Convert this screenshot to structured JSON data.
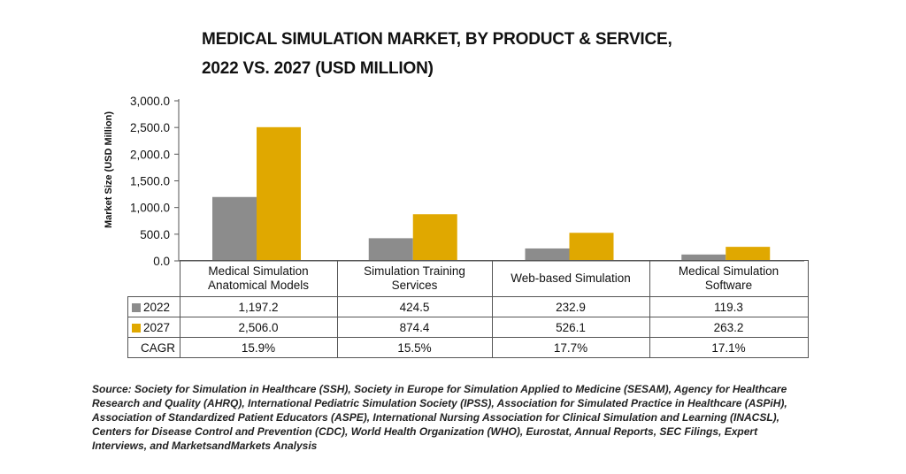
{
  "chart_data": {
    "type": "bar",
    "title": [
      "MEDICAL SIMULATION MARKET, BY PRODUCT & SERVICE,",
      "2022 VS. 2027 (USD MILLION)"
    ],
    "ylabel": "Market Size (USD Million)",
    "ylim": [
      0,
      3000
    ],
    "yticks": [
      "3,000.0",
      "2,500.0",
      "2,000.0",
      "1,500.0",
      "1,000.0",
      "500.0",
      "0.0"
    ],
    "ytick_values": [
      3000,
      2500,
      2000,
      1500,
      1000,
      500,
      0
    ],
    "categories": [
      [
        "Medical Simulation",
        "Anatomical Models"
      ],
      [
        "Simulation Training",
        "Services"
      ],
      [
        "Web-based Simulation"
      ],
      [
        "Medical Simulation",
        "Software"
      ]
    ],
    "series": [
      {
        "name": "2022",
        "color": "#8c8c8c",
        "values": [
          1197.2,
          424.5,
          232.9,
          119.3
        ],
        "labels": [
          "1,197.2",
          "424.5",
          "232.9",
          "119.3"
        ]
      },
      {
        "name": "2027",
        "color": "#e0a800",
        "values": [
          2506.0,
          874.4,
          526.1,
          263.2
        ],
        "labels": [
          "2,506.0",
          "874.4",
          "526.1",
          "263.2"
        ]
      }
    ],
    "cagr": {
      "label": "CAGR",
      "values": [
        "15.9%",
        "15.5%",
        "17.7%",
        "17.1%"
      ]
    },
    "grid": false,
    "legend": "table-left"
  },
  "source": "Source: Society for Simulation in Healthcare (SSH), Society in Europe for Simulation Applied to Medicine (SESAM), Agency for Healthcare Research and Quality (AHRQ), International Pediatric Simulation Society (IPSS), Association for Simulated Practice in Healthcare (ASPiH), Association of Standardized Patient Educators (ASPE), International Nursing Association for Clinical Simulation and Learning (INACSL), Centers for Disease Control and Prevention (CDC), World Health Organization (WHO), Eurostat, Annual Reports, SEC Filings, Expert Interviews, and MarketsandMarkets Analysis"
}
